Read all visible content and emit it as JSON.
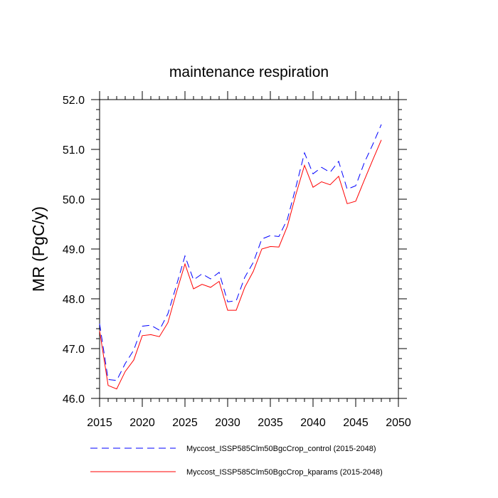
{
  "chart_data": {
    "type": "line",
    "title": "maintenance respiration",
    "ylabel": "MR  (PgC/y)",
    "xlabel": "",
    "xlim": [
      2015,
      2050
    ],
    "ylim": [
      46.0,
      52.0
    ],
    "xticks": [
      2015,
      2020,
      2025,
      2030,
      2035,
      2040,
      2045,
      2050
    ],
    "yticks": [
      46.0,
      47.0,
      48.0,
      49.0,
      50.0,
      51.0,
      52.0
    ],
    "ytick_labels": [
      "46.0",
      "47.0",
      "48.0",
      "49.0",
      "50.0",
      "51.0",
      "52.0"
    ],
    "xminor_step": 1,
    "yminor_step": 0.2,
    "grid": false,
    "legend_position": "bottom",
    "x": [
      2015,
      2016,
      2017,
      2018,
      2019,
      2020,
      2021,
      2022,
      2023,
      2024,
      2025,
      2026,
      2027,
      2028,
      2029,
      2030,
      2031,
      2032,
      2033,
      2034,
      2035,
      2036,
      2037,
      2038,
      2039,
      2040,
      2041,
      2042,
      2043,
      2044,
      2045,
      2046,
      2047,
      2048
    ],
    "series": [
      {
        "name": "Myccost_ISSP585Clm50BgcCrop_control (2015-2048)",
        "color": "#0000ff",
        "dash": "dashed",
        "values": [
          47.5,
          46.38,
          46.36,
          46.7,
          46.97,
          47.45,
          47.47,
          47.37,
          47.7,
          48.27,
          48.86,
          48.38,
          48.5,
          48.4,
          48.53,
          47.94,
          47.96,
          48.43,
          48.73,
          49.2,
          49.27,
          49.25,
          49.6,
          50.25,
          50.93,
          50.51,
          50.64,
          50.54,
          50.76,
          50.2,
          50.27,
          50.73,
          51.1,
          51.5
        ]
      },
      {
        "name": "Myccost_ISSP585Clm50BgcCrop_kparams (2015-2048)",
        "color": "#ff0000",
        "dash": "solid",
        "values": [
          47.36,
          46.26,
          46.19,
          46.54,
          46.77,
          47.26,
          47.28,
          47.24,
          47.52,
          48.13,
          48.7,
          48.2,
          48.29,
          48.23,
          48.35,
          47.77,
          47.77,
          48.23,
          48.55,
          49.0,
          49.05,
          49.04,
          49.46,
          50.1,
          50.68,
          50.24,
          50.35,
          50.29,
          50.46,
          49.91,
          49.96,
          50.38,
          50.79,
          51.19
        ]
      }
    ]
  }
}
